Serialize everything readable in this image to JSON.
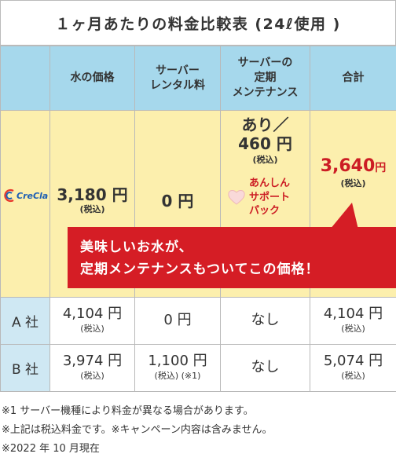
{
  "title": "１ヶ月あたりの料金比較表 (24ℓ使用 )",
  "headers": {
    "water": "水の価格",
    "server_rental_1": "サーバー",
    "server_rental_2": "レンタル料",
    "maint_1": "サーバーの",
    "maint_2": "定期",
    "maint_3": "メンテナンス",
    "total": "合計"
  },
  "crecia": {
    "logo_text": "CreCla",
    "water_price": "3,180 円",
    "water_tax": "(税込)",
    "rental": "0 円",
    "maint_line1": "あり／",
    "maint_line2": "460 円",
    "maint_tax": "(税込)",
    "anshin_1": "あんしん",
    "anshin_2": "サポート",
    "anshin_3": "パック",
    "total_num": "3,640",
    "total_unit": "円",
    "total_tax": "(税込)"
  },
  "banner": {
    "line1": "美味しいお水が、",
    "line2": "定期メンテナンスもついてこの価格！"
  },
  "rows": [
    {
      "label": "A 社",
      "water": "4,104 円",
      "water_tax": "(税込)",
      "rental": "0 円",
      "rental_tax": "",
      "maint": "なし",
      "total": "4,104 円",
      "total_tax": "(税込)"
    },
    {
      "label": "B 社",
      "water": "3,974 円",
      "water_tax": "(税込)",
      "rental": "1,100 円",
      "rental_tax": "(税込) (※1)",
      "maint": "なし",
      "total": "5,074 円",
      "total_tax": "(税込)"
    }
  ],
  "notes": [
    "※1 サーバー機種により料金が異なる場合があります。",
    "※上記は税込料金です。※キャンペーン内容は含みません。",
    "※2022 年 10 月現在"
  ],
  "colors": {
    "header_bg": "#a6d8ec",
    "crecia_bg": "#fcefad",
    "company_label_bg": "#cfe8f3",
    "accent_red": "#d51d25"
  }
}
